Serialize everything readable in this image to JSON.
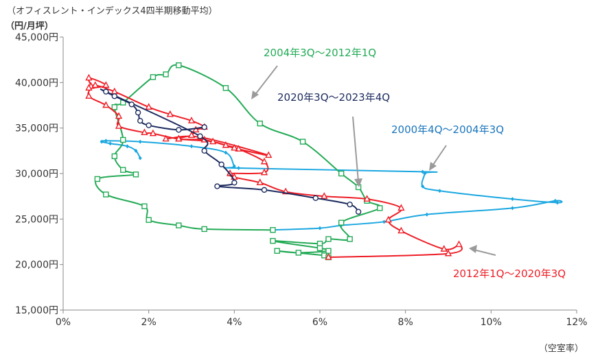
{
  "chart_data": {
    "type": "line",
    "title": "（オフィスレント・インデックス4四半期移動平均）",
    "ylabel": "（円/月坪）",
    "xlabel": "（空室率）",
    "xlim": [
      0,
      12
    ],
    "ylim": [
      15000,
      45000
    ],
    "x_ticks": [
      0,
      2,
      4,
      6,
      8,
      10,
      12
    ],
    "y_ticks": [
      15000,
      20000,
      25000,
      30000,
      35000,
      40000,
      45000
    ],
    "x_tick_labels": [
      "0%",
      "2%",
      "4%",
      "6%",
      "8%",
      "10%",
      "12%"
    ],
    "y_tick_labels": [
      "15,000円",
      "20,000円",
      "25,000円",
      "30,000円",
      "35,000円",
      "40,000円",
      "45,000円"
    ],
    "grid": false,
    "series": [
      {
        "name": "2000年4Q～2004年3Q",
        "color": "#1AA7E0",
        "marker": "diamond",
        "points": [
          [
            1.8,
            31.7
          ],
          [
            1.7,
            32.5
          ],
          [
            1.5,
            33.0
          ],
          [
            1.1,
            33.3
          ],
          [
            0.9,
            33.5
          ],
          [
            1.0,
            33.6
          ],
          [
            1.8,
            33.5
          ],
          [
            3.0,
            33.0
          ],
          [
            3.8,
            32.3
          ],
          [
            4.0,
            30.8
          ],
          [
            4.1,
            30.6
          ],
          [
            8.4,
            30.2
          ],
          [
            8.45,
            30.0
          ],
          [
            8.4,
            28.6
          ],
          [
            8.8,
            28.1
          ],
          [
            10.5,
            27.2
          ],
          [
            11.55,
            26.8
          ],
          [
            11.5,
            27.0
          ],
          [
            10.5,
            26.2
          ],
          [
            8.5,
            25.5
          ],
          [
            7.5,
            24.7
          ],
          [
            6.5,
            24.3
          ],
          [
            6.0,
            24.0
          ],
          [
            4.9,
            23.8
          ]
        ]
      },
      {
        "name": "2004年3Q～2012年1Q",
        "color": "#22AA55",
        "marker": "square",
        "points": [
          [
            4.9,
            23.8
          ],
          [
            3.3,
            23.9
          ],
          [
            2.7,
            24.3
          ],
          [
            2.0,
            24.9
          ],
          [
            1.9,
            26.4
          ],
          [
            1.0,
            27.7
          ],
          [
            0.8,
            29.4
          ],
          [
            1.7,
            29.9
          ],
          [
            1.4,
            30.4
          ],
          [
            1.2,
            31.9
          ],
          [
            1.4,
            33.7
          ],
          [
            1.2,
            37.3
          ],
          [
            1.4,
            37.8
          ],
          [
            2.1,
            40.6
          ],
          [
            2.4,
            40.9
          ],
          [
            2.7,
            41.9
          ],
          [
            3.8,
            39.4
          ],
          [
            4.6,
            35.5
          ],
          [
            5.6,
            33.5
          ],
          [
            6.5,
            30.0
          ],
          [
            6.9,
            28.5
          ],
          [
            7.1,
            27.0
          ],
          [
            7.4,
            26.2
          ],
          [
            6.5,
            24.6
          ],
          [
            6.7,
            22.8
          ],
          [
            6.2,
            22.8
          ],
          [
            6.0,
            22.3
          ],
          [
            4.9,
            22.6
          ],
          [
            6.0,
            21.8
          ],
          [
            6.2,
            21.5
          ],
          [
            5.5,
            21.3
          ],
          [
            5.0,
            21.5
          ],
          [
            6.1,
            21.0
          ],
          [
            6.2,
            20.8
          ]
        ]
      },
      {
        "name": "2012年1Q～2020年3Q",
        "color": "#EE1C25",
        "marker": "triangle",
        "points": [
          [
            6.2,
            20.8
          ],
          [
            9.0,
            21.2
          ],
          [
            9.25,
            22.2
          ],
          [
            8.9,
            21.7
          ],
          [
            7.9,
            23.7
          ],
          [
            7.6,
            24.9
          ],
          [
            7.9,
            26.2
          ],
          [
            7.1,
            27.2
          ],
          [
            6.1,
            27.5
          ],
          [
            5.2,
            28.0
          ],
          [
            4.6,
            29.0
          ],
          [
            4.0,
            29.6
          ],
          [
            3.9,
            30.0
          ],
          [
            4.7,
            30.1
          ],
          [
            4.7,
            31.3
          ],
          [
            4.1,
            32.7
          ],
          [
            3.8,
            33.1
          ],
          [
            3.3,
            33.7
          ],
          [
            2.7,
            33.8
          ],
          [
            2.1,
            34.4
          ],
          [
            1.9,
            34.5
          ],
          [
            1.3,
            35.2
          ],
          [
            1.3,
            36.3
          ],
          [
            1.0,
            37.5
          ],
          [
            0.6,
            38.5
          ],
          [
            0.65,
            39.6
          ],
          [
            0.6,
            40.5
          ],
          [
            1.0,
            39.7
          ],
          [
            0.6,
            39.4
          ],
          [
            0.75,
            39.7
          ],
          [
            1.2,
            39.0
          ],
          [
            2.0,
            37.3
          ],
          [
            2.5,
            36.5
          ],
          [
            3.0,
            35.8
          ],
          [
            3.3,
            35.1
          ],
          [
            3.1,
            34.8
          ],
          [
            3.0,
            34.2
          ],
          [
            2.7,
            33.8
          ],
          [
            3.5,
            33.5
          ],
          [
            4.0,
            32.8
          ],
          [
            4.8,
            32.0
          ],
          [
            3.2,
            34.0
          ],
          [
            2.4,
            33.8
          ]
        ]
      },
      {
        "name": "2020年3Q～2023年4Q",
        "color": "#1B2A5E",
        "marker": "circle",
        "points": [
          [
            3.3,
            35.1
          ],
          [
            2.7,
            34.8
          ],
          [
            2.0,
            35.3
          ],
          [
            1.8,
            35.8
          ],
          [
            1.75,
            36.7
          ],
          [
            1.6,
            37.6
          ],
          [
            1.2,
            38.5
          ],
          [
            1.0,
            39.0
          ],
          [
            3.2,
            34.1
          ],
          [
            3.3,
            32.5
          ],
          [
            3.7,
            31.0
          ],
          [
            4.0,
            29.0
          ],
          [
            3.6,
            28.6
          ],
          [
            4.7,
            28.2
          ],
          [
            5.9,
            27.3
          ],
          [
            6.7,
            26.6
          ],
          [
            6.9,
            25.8
          ]
        ]
      }
    ],
    "annotations": [
      {
        "text": "2004年3Q～2012年1Q",
        "color": "#22AA55",
        "series": "2004年3Q～2012年1Q"
      },
      {
        "text": "2020年3Q～2023年4Q",
        "color": "#1B2A5E",
        "series": "2020年3Q～2023年4Q"
      },
      {
        "text": "2000年4Q～2004年3Q",
        "color": "#1A75BC",
        "series": "2000年4Q～2004年3Q"
      },
      {
        "text": "2012年1Q～2020年3Q",
        "color": "#EE1C25",
        "series": "2012年1Q～2020年3Q"
      }
    ]
  }
}
